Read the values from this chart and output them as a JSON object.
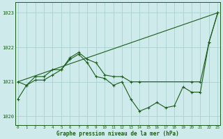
{
  "title": "Graphe pression niveau de la mer (hPa)",
  "background_color": "#ceeaea",
  "grid_color": "#a8d0d0",
  "line_color": "#1a5c1a",
  "ylim": [
    1019.75,
    1023.3
  ],
  "xlim": [
    -0.3,
    23.3
  ],
  "yticks": [
    1020,
    1021,
    1022,
    1023
  ],
  "xticks": [
    0,
    1,
    2,
    3,
    4,
    5,
    6,
    7,
    8,
    9,
    10,
    11,
    12,
    13,
    14,
    15,
    16,
    17,
    18,
    19,
    20,
    21,
    22,
    23
  ],
  "trend_x": [
    0,
    23
  ],
  "trend_y": [
    1021.0,
    1023.0
  ],
  "upper_x": [
    0,
    1,
    2,
    3,
    4,
    5,
    6,
    7,
    8,
    9,
    10,
    11,
    12,
    13,
    14,
    20,
    21,
    22,
    23
  ],
  "upper_y": [
    1021.0,
    1020.9,
    1021.15,
    1021.15,
    1021.35,
    1021.35,
    1021.7,
    1021.85,
    1021.65,
    1021.55,
    1021.2,
    1021.15,
    1021.15,
    1021.0,
    1021.0,
    1021.0,
    1021.0,
    1022.15,
    1023.0
  ],
  "lower_x": [
    0,
    1,
    2,
    3,
    4,
    5,
    6,
    7,
    8,
    9,
    10,
    11,
    12,
    13,
    14,
    15,
    16,
    17,
    18,
    19,
    20,
    21,
    22,
    23
  ],
  "lower_y": [
    1020.5,
    1020.9,
    1021.05,
    1021.05,
    1021.2,
    1021.35,
    1021.65,
    1021.8,
    1021.55,
    1021.15,
    1021.1,
    1020.9,
    1021.0,
    1020.5,
    1020.15,
    1020.25,
    1020.4,
    1020.25,
    1020.3,
    1020.85,
    1020.7,
    1020.7,
    1022.15,
    1023.0
  ]
}
